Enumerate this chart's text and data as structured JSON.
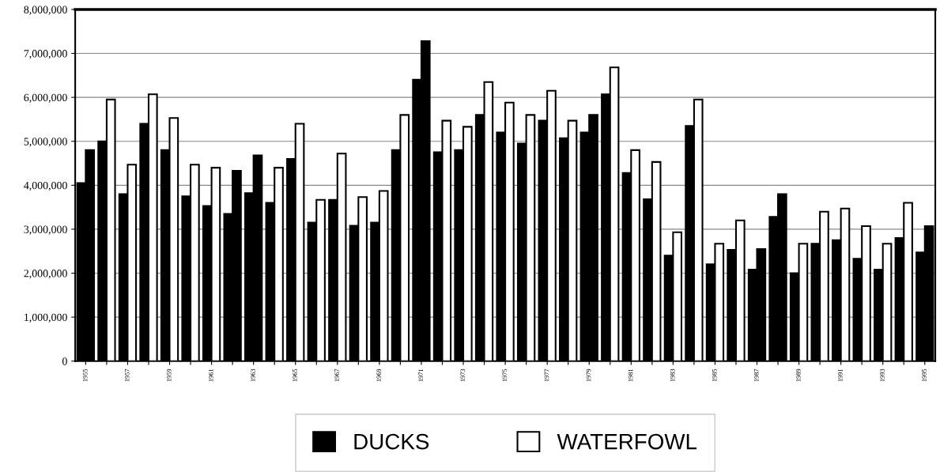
{
  "chart_data": {
    "type": "bar",
    "categories": [
      "1955",
      null,
      "1957",
      null,
      "1959",
      null,
      "1961",
      null,
      "1963",
      null,
      "1965",
      null,
      "1967",
      null,
      "1969",
      null,
      "1971",
      null,
      "1973",
      null,
      "1975",
      null,
      "1977",
      null,
      "1979",
      null,
      "1981",
      null,
      "1983",
      null,
      "1985",
      null,
      "1987",
      null,
      "1989",
      null,
      "1991",
      null,
      "1993",
      null,
      "1995"
    ],
    "series": [
      {
        "name": "DUCKS",
        "color": "#000000",
        "values": [
          4050000,
          5000000,
          3800000,
          5400000,
          4800000,
          3750000,
          3530000,
          3350000,
          3820000,
          3600000,
          4600000,
          3150000,
          3670000,
          3080000,
          3150000,
          4800000,
          6400000,
          4750000,
          4800000,
          5600000,
          5200000,
          4950000,
          5470000,
          5070000,
          5200000,
          6070000,
          4280000,
          3680000,
          2400000,
          5350000,
          2200000,
          2530000,
          2080000,
          3280000,
          2000000,
          2670000,
          2750000,
          2330000,
          2080000,
          2800000,
          2470000
        ]
      },
      {
        "name": "WATERFOWL",
        "color": "#ffffff",
        "colors": [
          "#000000",
          "#ffffff",
          "#ffffff",
          "#ffffff",
          "#ffffff",
          "#ffffff",
          "#ffffff",
          "#000000",
          "#000000",
          "#ffffff",
          "#ffffff",
          "#ffffff",
          "#ffffff",
          "#ffffff",
          "#ffffff",
          "#ffffff",
          "#000000",
          "#ffffff",
          "#ffffff",
          "#ffffff",
          "#ffffff",
          "#ffffff",
          "#ffffff",
          "#ffffff",
          "#000000",
          "#ffffff",
          "#ffffff",
          "#ffffff",
          "#ffffff",
          "#ffffff",
          "#ffffff",
          "#ffffff",
          "#000000",
          "#000000",
          "#ffffff",
          "#ffffff",
          "#ffffff",
          "#ffffff",
          "#ffffff",
          "#ffffff",
          "#000000"
        ],
        "values": [
          4800000,
          5950000,
          4470000,
          6070000,
          5530000,
          4470000,
          4400000,
          4330000,
          4680000,
          4400000,
          5400000,
          3670000,
          4720000,
          3730000,
          3870000,
          5600000,
          7280000,
          5470000,
          5330000,
          6350000,
          5880000,
          5600000,
          6150000,
          5470000,
          5600000,
          6680000,
          4800000,
          4530000,
          2930000,
          5950000,
          2670000,
          3200000,
          2550000,
          3800000,
          2670000,
          3400000,
          3470000,
          3070000,
          2670000,
          3600000,
          3070000
        ]
      }
    ],
    "ylim": [
      0,
      8000000
    ],
    "yticks": [
      0,
      {
        "value": 1000000,
        "label": "1,000,000"
      },
      {
        "value": 2000000,
        "label": "2,000,000"
      },
      {
        "value": 3000000,
        "label": "3,000,000"
      },
      {
        "value": 4000000,
        "label": "4,000,000"
      },
      {
        "value": 5000000,
        "label": "5,000,000"
      },
      {
        "value": 6000000,
        "label": "6,000,000"
      },
      {
        "value": 7000000,
        "label": "7,000,000"
      },
      {
        "value": 8000000,
        "label": "8,000,000"
      }
    ],
    "grid": "y",
    "legend": "bottom"
  }
}
